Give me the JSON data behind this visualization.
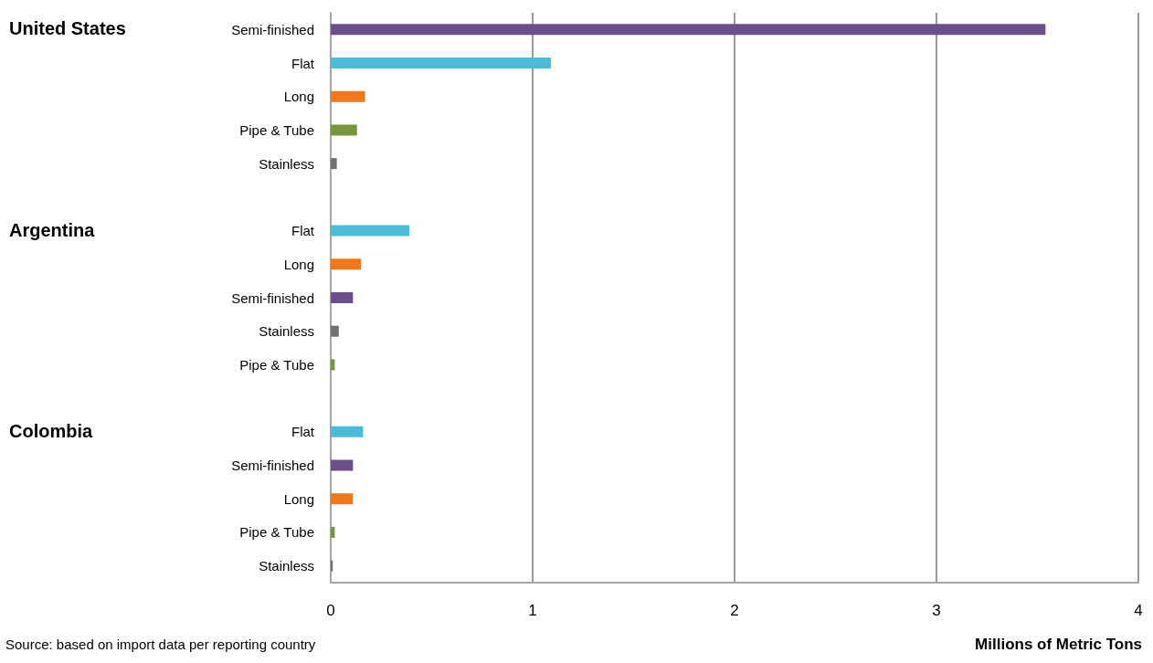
{
  "chart_data": {
    "type": "bar",
    "orientation": "horizontal",
    "xlabel": "Millions of Metric Tons",
    "categories": [
      "Semi-finished",
      "Flat",
      "Long",
      "Pipe & Tube",
      "Stainless",
      null,
      "Flat",
      "Long",
      "Semi-finished",
      "Stainless",
      "Pipe & Tube",
      null,
      "Flat",
      "Semi-finished",
      "Long",
      "Pipe & Tube",
      "Stainless"
    ],
    "values": [
      3.54,
      1.09,
      0.17,
      0.13,
      0.03,
      null,
      0.39,
      0.15,
      0.11,
      0.04,
      0.02,
      null,
      0.16,
      0.11,
      0.11,
      0.02,
      0.01
    ],
    "colors": [
      "#6a4f8a",
      "#4bbcd8",
      "#f07818",
      "#77963a",
      "#707070",
      null,
      "#4bbcd8",
      "#f07818",
      "#6a4f8a",
      "#707070",
      "#77963a",
      null,
      "#4bbcd8",
      "#6a4f8a",
      "#f07818",
      "#77963a",
      "#707070"
    ],
    "xlim": [
      0,
      4
    ],
    "xticks": [
      0,
      1,
      2,
      3,
      4
    ],
    "grid": "x",
    "annotations": [
      "United States",
      "Argentina",
      "Colombia",
      "Source: based on import data per reporting country"
    ]
  }
}
